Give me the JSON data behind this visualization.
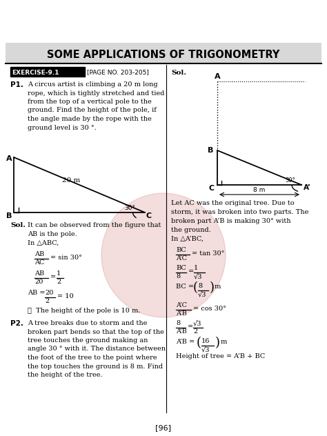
{
  "title": "SOME APPLICATIONS OF TRIGONOMETRY",
  "bg_color": "#ffffff",
  "title_bg": "#d8d8d8",
  "page_number": "[96]",
  "exercise_label": "EXERCISE-9.1",
  "page_ref": "[PAGE NO. 203-205]",
  "watermark_color": "#d4808080"
}
